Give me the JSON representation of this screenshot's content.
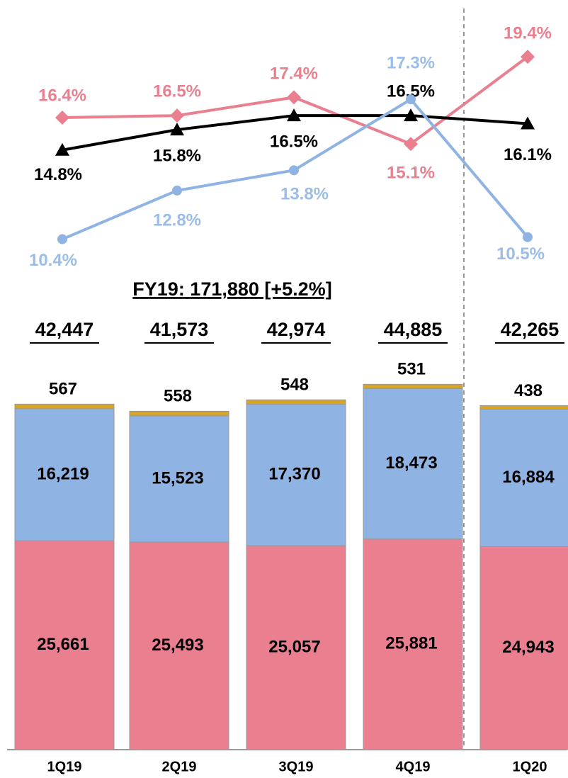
{
  "chart_data": [
    {
      "type": "line",
      "ylim": [
        10,
        20
      ],
      "series": [
        {
          "color": "#e97f8f",
          "marker": "diamond",
          "values": [
            16.4,
            16.5,
            17.4,
            15.1,
            19.4
          ],
          "value_labels": [
            "16.4%",
            "16.5%",
            "17.4%",
            "15.1%",
            "19.4%"
          ]
        },
        {
          "color": "#000000",
          "marker": "triangle",
          "values": [
            14.8,
            15.8,
            16.5,
            16.5,
            16.1
          ],
          "value_labels": [
            "14.8%",
            "15.8%",
            "16.5%",
            "16.5%",
            "16.1%"
          ]
        },
        {
          "color": "#8fb4e3",
          "marker": "circle",
          "values": [
            10.4,
            12.8,
            13.8,
            17.3,
            10.5
          ],
          "value_labels": [
            "10.4%",
            "12.8%",
            "13.8%",
            "17.3%",
            "10.5%"
          ]
        }
      ]
    },
    {
      "type": "stacked_bar",
      "title": "FY19: 171,880 [+5.2%]",
      "categories": [
        "1Q19",
        "2Q19",
        "3Q19",
        "4Q19",
        "1Q20"
      ],
      "totals": [
        42447,
        41573,
        42974,
        44885,
        42265
      ],
      "totals_labels": [
        "42,447",
        "41,573",
        "42,974",
        "44,885",
        "42,265"
      ],
      "ylim": [
        0,
        45000
      ],
      "series": [
        {
          "color": "#e97f8f",
          "values": [
            25661,
            25493,
            25057,
            25881,
            24943
          ],
          "value_labels": [
            "25,661",
            "25,493",
            "25,057",
            "25,881",
            "24,943"
          ]
        },
        {
          "color": "#8fb4e3",
          "values": [
            16219,
            15523,
            17370,
            18473,
            16884
          ],
          "value_labels": [
            "16,219",
            "15,523",
            "17,370",
            "18,473",
            "16,884"
          ]
        },
        {
          "color": "#d9a521",
          "values": [
            567,
            558,
            548,
            531,
            438
          ],
          "value_labels": [
            "567",
            "558",
            "548",
            "531",
            "438"
          ]
        }
      ]
    }
  ]
}
